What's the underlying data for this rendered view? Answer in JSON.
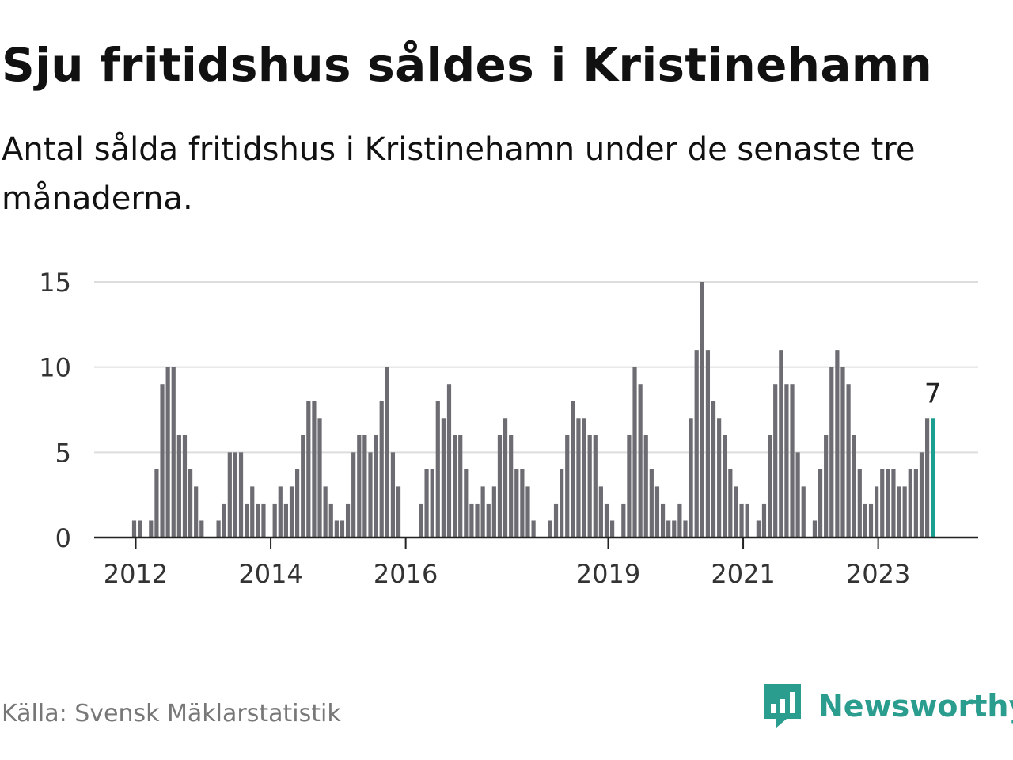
{
  "header": {
    "title": "Sju fritidshus såldes i Kristinehamn",
    "subtitle": "Antal sålda fritidshus i Kristinehamn under de senaste tre månaderna."
  },
  "footer": {
    "source": "Källa: Svensk Mäklarstatistik",
    "brand": "Newsworthy"
  },
  "colors": {
    "bar": "#6d6c72",
    "highlight": "#1a9e8f",
    "grid": "#dddddd",
    "axis": "#222222",
    "brand": "#2a9d8f"
  },
  "icons": {
    "brand_logo": "bar-chart-speech-bubble-icon"
  },
  "chart_data": {
    "type": "bar",
    "title": "Sju fritidshus såldes i Kristinehamn",
    "subtitle": "Antal sålda fritidshus i Kristinehamn under de senaste tre månaderna.",
    "xlabel": "",
    "ylabel": "",
    "ylim": [
      0,
      15
    ],
    "yticks": [
      0,
      5,
      10,
      15
    ],
    "xtick_labels": [
      "2012",
      "2014",
      "2016",
      "2019",
      "2021",
      "2023"
    ],
    "grid": true,
    "legend": "none",
    "highlight_label": "7",
    "series": [
      {
        "values": [
          1,
          1,
          0,
          1,
          4,
          9,
          10,
          10,
          6,
          6,
          4,
          3,
          1,
          0,
          0,
          1,
          2,
          5,
          5,
          5,
          2,
          3,
          2,
          2,
          0,
          2,
          3,
          2,
          3,
          4,
          6,
          8,
          8,
          7,
          3,
          2,
          1,
          1,
          2,
          5,
          6,
          6,
          5,
          6,
          8,
          10,
          5,
          3,
          0,
          0,
          0,
          2,
          4,
          4,
          8,
          7,
          9,
          6,
          6,
          4,
          2,
          2,
          3,
          2,
          3,
          6,
          7,
          6,
          4,
          4,
          3,
          1,
          0,
          0,
          1,
          2,
          4,
          6,
          8,
          7,
          7,
          6,
          6,
          3,
          2,
          1,
          0,
          2,
          6,
          10,
          9,
          6,
          4,
          3,
          2,
          1,
          1,
          2,
          1,
          7,
          11,
          15,
          11,
          8,
          7,
          6,
          4,
          3,
          2,
          2,
          0,
          1,
          2,
          6,
          9,
          11,
          9,
          9,
          5,
          3,
          0,
          1,
          4,
          6,
          10,
          11,
          10,
          9,
          6,
          4,
          2,
          2,
          3,
          4,
          4,
          4,
          3,
          3,
          4,
          4,
          5,
          7,
          7
        ]
      }
    ]
  }
}
